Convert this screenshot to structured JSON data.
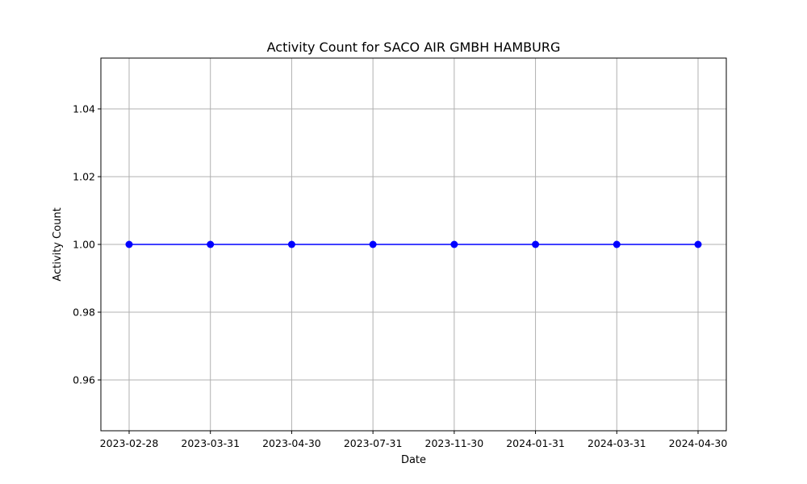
{
  "chart_data": {
    "type": "line",
    "title": "Activity Count for SACO AIR GMBH HAMBURG",
    "xlabel": "Date",
    "ylabel": "Activity Count",
    "categories": [
      "2023-02-28",
      "2023-03-31",
      "2023-04-30",
      "2023-07-31",
      "2023-11-30",
      "2024-01-31",
      "2024-03-31",
      "2024-04-30"
    ],
    "series": [
      {
        "values": [
          1,
          1,
          1,
          1,
          1,
          1,
          1,
          1
        ],
        "color": "#0000ff"
      }
    ],
    "ylim": [
      0.945,
      1.055
    ],
    "yticks": [
      0.96,
      0.98,
      1.0,
      1.02,
      1.04
    ],
    "ytick_labels": [
      "0.96",
      "0.98",
      "1.00",
      "1.02",
      "1.04"
    ],
    "grid": true,
    "grid_color": "#b0b0b0",
    "marker": "circle"
  }
}
